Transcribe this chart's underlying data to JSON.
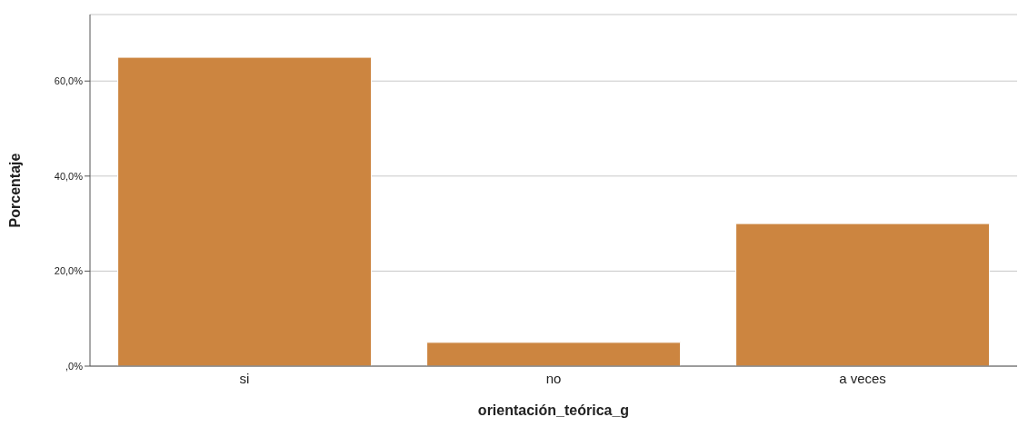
{
  "chart_data": {
    "type": "bar",
    "categories": [
      "si",
      "no",
      "a veces"
    ],
    "values": [
      65,
      5,
      30
    ],
    "color": "#cc8540",
    "ylim": [
      0,
      74
    ],
    "yticks": [
      {
        "value": 0,
        "label": ",0%"
      },
      {
        "value": 20,
        "label": "20,0%"
      },
      {
        "value": 40,
        "label": "40,0%"
      },
      {
        "value": 60,
        "label": "60,0%"
      }
    ],
    "grid": "y",
    "xlabel": "orientación_teórica_g",
    "ylabel": "Porcentaje"
  }
}
